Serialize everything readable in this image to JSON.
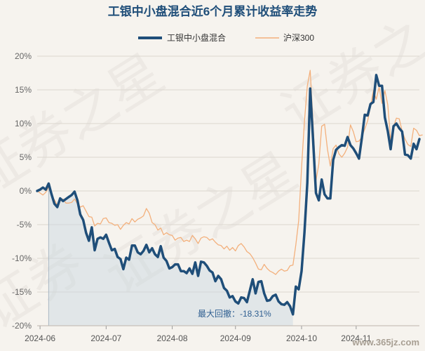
{
  "chart_data": {
    "type": "line",
    "title": "工银中小盘混合近6个月累计收益率走势",
    "xlabel": "",
    "ylabel": "",
    "ylim": [
      -20,
      20
    ],
    "yticks": [
      20,
      15,
      10,
      5,
      0,
      -5,
      -10,
      -15,
      -20
    ],
    "ytick_labels": [
      "20%",
      "15%",
      "10%",
      "5%",
      "0%",
      "-5%",
      "-10%",
      "-15%",
      "-20%"
    ],
    "xtick_labels": [
      "2024-06",
      "2024-07",
      "2024-08",
      "2024-09",
      "2024-10",
      "2024-11"
    ],
    "grid": true,
    "legend": "top-center",
    "series": [
      {
        "name": "工银中小盘混合",
        "color": "#1f4e79",
        "values": [
          0,
          0.2,
          0.5,
          0.2,
          1.1,
          -0.5,
          -1.9,
          -2.4,
          -1.1,
          -1.5,
          -1.2,
          -0.9,
          -0.6,
          -0.1,
          -1.4,
          -3.5,
          -4.3,
          -6.2,
          -7.4,
          -5.4,
          -8.8,
          -7.1,
          -6.9,
          -7.1,
          -6.5,
          -7.7,
          -8.8,
          -8.6,
          -9.8,
          -10.1,
          -11.6,
          -9.9,
          -10.2,
          -8.1,
          -8.1,
          -9.1,
          -9.4,
          -8.9,
          -8.0,
          -9.1,
          -8.5,
          -9.4,
          -9.8,
          -8.2,
          -9.9,
          -10.4,
          -11.5,
          -11.3,
          -10.9,
          -10.9,
          -11.9,
          -11.9,
          -12.2,
          -11.5,
          -12.3,
          -10.6,
          -12.6,
          -10.5,
          -10.6,
          -11.1,
          -11.8,
          -12.1,
          -13.4,
          -12.6,
          -13.1,
          -14.4,
          -14.8,
          -15.8,
          -15.6,
          -16.4,
          -16.7,
          -15.8,
          -15.9,
          -16.5,
          -14.8,
          -13.1,
          -15.2,
          -13.5,
          -13.4,
          -15.2,
          -16.3,
          -16.2,
          -15.6,
          -15.4,
          -16.4,
          -16.8,
          -16.9,
          -16.5,
          -17.1,
          -18.31,
          -14.2,
          -14.6,
          -11.9,
          -6.2,
          1.2,
          15.2,
          7.6,
          -0.3,
          -1.4,
          1.7,
          -0.5,
          -1.1,
          -1.1,
          4.6,
          6.1,
          6.5,
          6.8,
          6.7,
          8.0,
          6.8,
          6.3,
          5.6,
          4.8,
          7.9,
          11.3,
          11.2,
          12.9,
          13.2,
          17.2,
          15.6,
          15.6,
          10.9,
          8.9,
          6.2,
          9.6,
          10.0,
          9.3,
          8.8,
          5.4,
          5.3,
          4.8,
          7.0,
          6.2,
          7.7
        ]
      },
      {
        "name": "沪深300",
        "color": "#f3b07c",
        "values": [
          0,
          -0.3,
          -0.6,
          -0.2,
          0.6,
          -0.8,
          -1.3,
          -2.1,
          -1.5,
          -1.2,
          -1.8,
          -1.8,
          -1.7,
          -1.2,
          -1.9,
          -2.4,
          -2.2,
          -3.0,
          -3.8,
          -3.9,
          -5.2,
          -4.8,
          -4.9,
          -4.1,
          -4.0,
          -4.7,
          -4.8,
          -5.1,
          -5.0,
          -5.7,
          -5.1,
          -4.7,
          -4.9,
          -4.1,
          -4.6,
          -4.2,
          -4.0,
          -3.7,
          -2.6,
          -3.3,
          -4.7,
          -5.0,
          -5.8,
          -5.5,
          -6.5,
          -6.2,
          -6.5,
          -6.6,
          -7.3,
          -7.0,
          -6.9,
          -7.5,
          -7.3,
          -7.5,
          -6.6,
          -7.1,
          -7.8,
          -7.0,
          -6.8,
          -6.9,
          -7.3,
          -7.1,
          -7.6,
          -8.0,
          -8.1,
          -8.6,
          -8.2,
          -8.8,
          -8.4,
          -8.9,
          -8.1,
          -7.8,
          -8.3,
          -9.0,
          -9.3,
          -9.9,
          -10.7,
          -11.6,
          -11.7,
          -10.9,
          -11.5,
          -11.9,
          -12.1,
          -12.4,
          -11.9,
          -11.6,
          -11.9,
          -11.8,
          -11.1,
          -11.0,
          -8.0,
          -4.4,
          3.5,
          10.3,
          15.6,
          17.9,
          10.0,
          1.5,
          4.0,
          9.6,
          9.9,
          6.2,
          3.7,
          6.3,
          6.8,
          5.5,
          5.0,
          5.6,
          6.5,
          9.8,
          8.8,
          7.3,
          7.4,
          8.0,
          9.2,
          10.4,
          12.6,
          14.9,
          13.6,
          15.4,
          13.0,
          14.9,
          12.8,
          7.6,
          9.5,
          10.8,
          10.7,
          8.9,
          7.7,
          6.9,
          6.6,
          9.3,
          9.0,
          8.2,
          8.3
        ]
      }
    ],
    "annotations": [
      {
        "text": "最大回撤：-18.31%"
      }
    ],
    "watermarks": [
      "证券之星",
      "证券之星",
      "证券之",
      "证券"
    ],
    "site_watermark": "www.365jz.com"
  }
}
